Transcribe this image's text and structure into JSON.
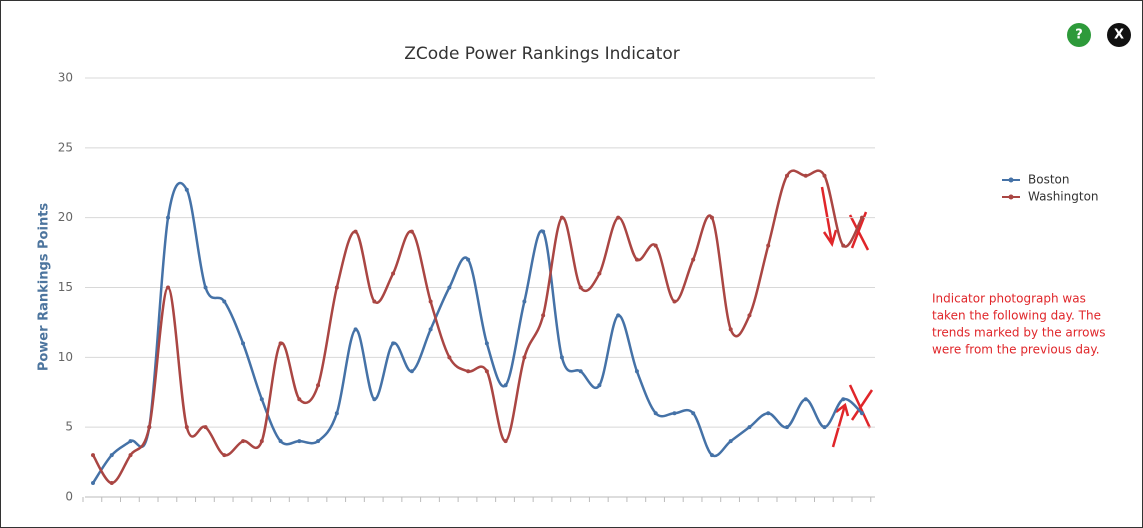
{
  "chart_data": {
    "type": "line",
    "title": "ZCode Power Rankings Indicator",
    "y_label": "Power Rankings Points",
    "categories": [
      null,
      null,
      null,
      null,
      null,
      null,
      null,
      null,
      null,
      null,
      null,
      null,
      null,
      null,
      null,
      null,
      null,
      null,
      null,
      null,
      null,
      null,
      null,
      null,
      null,
      null,
      null,
      null,
      null,
      null,
      null,
      null,
      null,
      null,
      null,
      null,
      null,
      null,
      null,
      null,
      null,
      null
    ],
    "series": [
      {
        "name": "Boston",
        "color": "#4572a7",
        "values": [
          1,
          3,
          4,
          5,
          20,
          22,
          15,
          14,
          11,
          7,
          4,
          4,
          4,
          6,
          12,
          7,
          11,
          9,
          12,
          15,
          17,
          11,
          8,
          14,
          19,
          10,
          9,
          8,
          13,
          9,
          6,
          6,
          6,
          3,
          4,
          5,
          6,
          5,
          7,
          5,
          7,
          6
        ]
      },
      {
        "name": "Washington",
        "color": "#aa4643",
        "values": [
          3,
          1,
          3,
          5,
          15,
          5,
          5,
          3,
          4,
          4,
          11,
          7,
          8,
          15,
          19,
          14,
          16,
          19,
          14,
          10,
          9,
          9,
          4,
          10,
          13,
          20,
          15,
          16,
          20,
          17,
          18,
          14,
          17,
          20,
          12,
          13,
          18,
          23,
          23,
          23,
          18,
          20
        ]
      }
    ],
    "ylim": [
      0,
      30
    ],
    "yticks": [
      0,
      5,
      10,
      15,
      20,
      25,
      30
    ],
    "grid": true,
    "legend": "right",
    "annotation": [
      "Indicator photograph was",
      "taken the following day. The",
      "trends marked by the arrows",
      "were from the previous day."
    ],
    "buttons": [
      "?",
      "X"
    ]
  }
}
